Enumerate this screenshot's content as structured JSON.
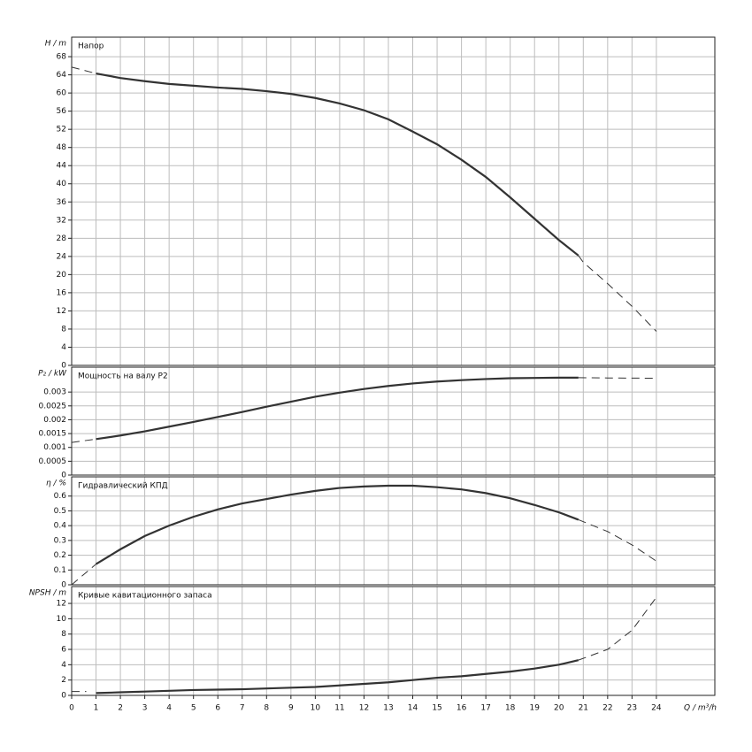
{
  "chart_data": [
    {
      "type": "line",
      "title": "Напор",
      "y_label": "H / m",
      "ylim": [
        0,
        72.3
      ],
      "yticks": [
        0,
        4,
        8,
        12,
        16,
        20,
        24,
        28,
        32,
        36,
        40,
        44,
        48,
        52,
        56,
        60,
        64,
        68
      ],
      "xlim": [
        0,
        26.4
      ],
      "xticks": [
        0,
        1,
        2,
        3,
        4,
        5,
        6,
        7,
        8,
        9,
        10,
        11,
        12,
        13,
        14,
        15,
        16,
        17,
        18,
        19,
        20,
        21,
        22,
        23,
        24
      ],
      "grid": true,
      "series": [
        {
          "line_style": "dashed",
          "color": "#333333",
          "x": [
            0,
            1
          ],
          "values": [
            65.7,
            64.3
          ]
        },
        {
          "line_style": "solid",
          "color": "#333333",
          "x": [
            1,
            2,
            3,
            4,
            5,
            6,
            7,
            8,
            9,
            10,
            11,
            12,
            13,
            14,
            15,
            16,
            17,
            18,
            19,
            20,
            20.8
          ],
          "values": [
            64.3,
            63.3,
            62.6,
            62,
            61.6,
            61.2,
            60.9,
            60.4,
            59.8,
            58.9,
            57.7,
            56.2,
            54.2,
            51.5,
            48.7,
            45.3,
            41.5,
            37,
            32.3,
            27.6,
            24.2
          ]
        },
        {
          "line_style": "dashed",
          "color": "#333333",
          "x": [
            20.8,
            21,
            22,
            23,
            24
          ],
          "values": [
            24.2,
            22.7,
            18,
            13,
            7.5
          ]
        }
      ]
    },
    {
      "type": "line",
      "title": "Мощность на валу P2",
      "y_label": "P₂ / kW",
      "ylim": [
        0,
        0.0039
      ],
      "yticks": [
        0,
        0.0005,
        0.001,
        0.0015,
        0.002,
        0.0025,
        0.003
      ],
      "xlim": [
        0,
        26.4
      ],
      "xticks": [
        0,
        1,
        2,
        3,
        4,
        5,
        6,
        7,
        8,
        9,
        10,
        11,
        12,
        13,
        14,
        15,
        16,
        17,
        18,
        19,
        20,
        21,
        22,
        23,
        24
      ],
      "grid": true,
      "series": [
        {
          "line_style": "dashed",
          "color": "#333333",
          "x": [
            0,
            1
          ],
          "values": [
            0.00118,
            0.0013
          ]
        },
        {
          "line_style": "solid",
          "color": "#333333",
          "x": [
            1,
            2,
            3,
            4,
            5,
            6,
            7,
            8,
            9,
            10,
            11,
            12,
            13,
            14,
            15,
            16,
            17,
            18,
            19,
            20,
            20.8
          ],
          "values": [
            0.0013,
            0.00143,
            0.00158,
            0.00175,
            0.00192,
            0.0021,
            0.00228,
            0.00247,
            0.00265,
            0.00283,
            0.00298,
            0.00311,
            0.00322,
            0.00331,
            0.00338,
            0.00343,
            0.00347,
            0.0035,
            0.00351,
            0.00352,
            0.00352
          ]
        },
        {
          "line_style": "dashed",
          "color": "#333333",
          "x": [
            20.8,
            22,
            24
          ],
          "values": [
            0.00352,
            0.00351,
            0.0035
          ]
        }
      ]
    },
    {
      "type": "line",
      "title": "Гидравлический КПД",
      "y_label": "η / %",
      "ylim": [
        0,
        0.73
      ],
      "yticks": [
        0,
        0.1,
        0.2,
        0.3,
        0.4,
        0.5,
        0.6
      ],
      "xlim": [
        0,
        26.4
      ],
      "xticks": [
        0,
        1,
        2,
        3,
        4,
        5,
        6,
        7,
        8,
        9,
        10,
        11,
        12,
        13,
        14,
        15,
        16,
        17,
        18,
        19,
        20,
        21,
        22,
        23,
        24
      ],
      "grid": true,
      "series": [
        {
          "line_style": "dashed",
          "color": "#333333",
          "x": [
            0,
            1
          ],
          "values": [
            0,
            0.14
          ]
        },
        {
          "line_style": "solid",
          "color": "#333333",
          "x": [
            1,
            2,
            3,
            4,
            5,
            6,
            7,
            8,
            9,
            10,
            11,
            12,
            13,
            14,
            15,
            16,
            17,
            18,
            19,
            20,
            20.8
          ],
          "values": [
            0.14,
            0.24,
            0.33,
            0.4,
            0.46,
            0.51,
            0.55,
            0.58,
            0.61,
            0.635,
            0.655,
            0.665,
            0.67,
            0.67,
            0.66,
            0.645,
            0.62,
            0.585,
            0.54,
            0.49,
            0.44
          ]
        },
        {
          "line_style": "dashed",
          "color": "#333333",
          "x": [
            20.8,
            22,
            23,
            24
          ],
          "values": [
            0.44,
            0.36,
            0.27,
            0.16
          ]
        }
      ]
    },
    {
      "type": "line",
      "title": "Кривые кавитационного запаса",
      "y_label": "NPSH / m",
      "x_label": "Q / m³/h",
      "ylim": [
        0,
        14.2
      ],
      "yticks": [
        0,
        2,
        4,
        6,
        8,
        10,
        12
      ],
      "xlim": [
        0,
        26.4
      ],
      "xticks": [
        0,
        1,
        2,
        3,
        4,
        5,
        6,
        7,
        8,
        9,
        10,
        11,
        12,
        13,
        14,
        15,
        16,
        17,
        18,
        19,
        20,
        21,
        22,
        23,
        24
      ],
      "grid": true,
      "series": [
        {
          "line_style": "dashed",
          "color": "#333333",
          "x": [
            0,
            0.6
          ],
          "values": [
            0.5,
            0.5
          ]
        },
        {
          "line_style": "solid",
          "color": "#333333",
          "x": [
            1,
            2,
            3,
            4,
            5,
            6,
            7,
            8,
            9,
            10,
            11,
            12,
            13,
            14,
            15,
            16,
            17,
            18,
            19,
            20,
            20.8
          ],
          "values": [
            0.3,
            0.4,
            0.5,
            0.6,
            0.7,
            0.75,
            0.8,
            0.9,
            1,
            1.1,
            1.3,
            1.5,
            1.7,
            2,
            2.3,
            2.5,
            2.8,
            3.1,
            3.5,
            4,
            4.6
          ]
        },
        {
          "line_style": "dashed",
          "color": "#333333",
          "x": [
            20.8,
            22,
            23,
            24
          ],
          "values": [
            4.6,
            6,
            8.5,
            12.8
          ]
        }
      ]
    }
  ]
}
